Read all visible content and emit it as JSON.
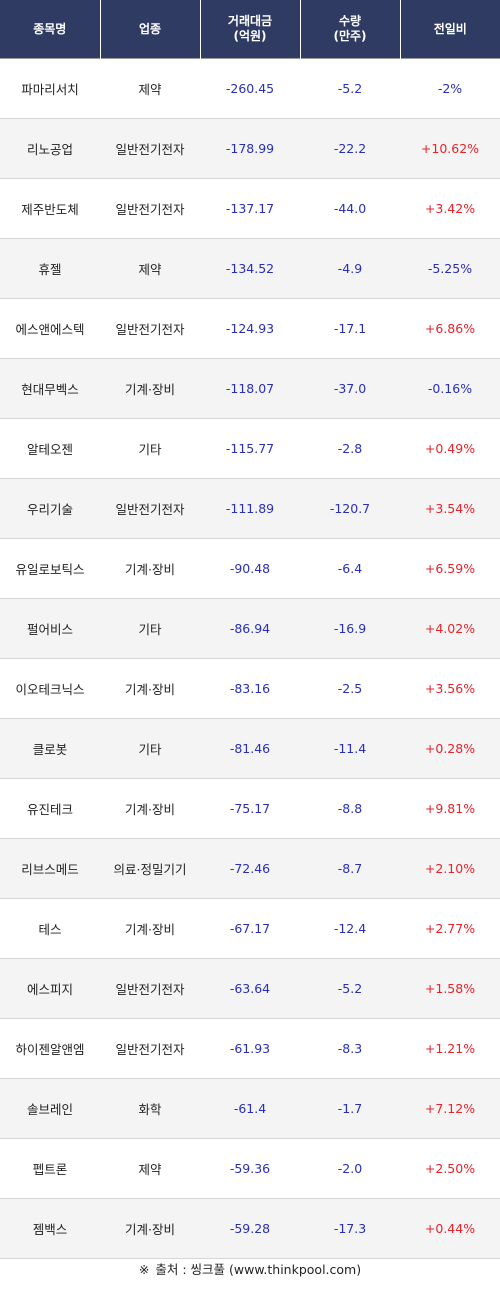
{
  "headers": {
    "name": "종목명",
    "sector": "업종",
    "amount_line1": "거래대금",
    "amount_line2": "(억원)",
    "volume_line1": "수량",
    "volume_line2": "(만주)",
    "change": "전일비"
  },
  "rows": [
    {
      "name": "파마리서치",
      "sector": "제약",
      "amount": "-260.45",
      "volume": "-5.2",
      "change": "-2%",
      "direction": "down"
    },
    {
      "name": "리노공업",
      "sector": "일반전기전자",
      "amount": "-178.99",
      "volume": "-22.2",
      "change": "+10.62%",
      "direction": "up"
    },
    {
      "name": "제주반도체",
      "sector": "일반전기전자",
      "amount": "-137.17",
      "volume": "-44.0",
      "change": "+3.42%",
      "direction": "up"
    },
    {
      "name": "휴젤",
      "sector": "제약",
      "amount": "-134.52",
      "volume": "-4.9",
      "change": "-5.25%",
      "direction": "down"
    },
    {
      "name": "에스앤에스텍",
      "sector": "일반전기전자",
      "amount": "-124.93",
      "volume": "-17.1",
      "change": "+6.86%",
      "direction": "up"
    },
    {
      "name": "현대무벡스",
      "sector": "기계·장비",
      "amount": "-118.07",
      "volume": "-37.0",
      "change": "-0.16%",
      "direction": "down"
    },
    {
      "name": "알테오젠",
      "sector": "기타",
      "amount": "-115.77",
      "volume": "-2.8",
      "change": "+0.49%",
      "direction": "up"
    },
    {
      "name": "우리기술",
      "sector": "일반전기전자",
      "amount": "-111.89",
      "volume": "-120.7",
      "change": "+3.54%",
      "direction": "up"
    },
    {
      "name": "유일로보틱스",
      "sector": "기계·장비",
      "amount": "-90.48",
      "volume": "-6.4",
      "change": "+6.59%",
      "direction": "up"
    },
    {
      "name": "펄어비스",
      "sector": "기타",
      "amount": "-86.94",
      "volume": "-16.9",
      "change": "+4.02%",
      "direction": "up"
    },
    {
      "name": "이오테크닉스",
      "sector": "기계·장비",
      "amount": "-83.16",
      "volume": "-2.5",
      "change": "+3.56%",
      "direction": "up"
    },
    {
      "name": "클로봇",
      "sector": "기타",
      "amount": "-81.46",
      "volume": "-11.4",
      "change": "+0.28%",
      "direction": "up"
    },
    {
      "name": "유진테크",
      "sector": "기계·장비",
      "amount": "-75.17",
      "volume": "-8.8",
      "change": "+9.81%",
      "direction": "up"
    },
    {
      "name": "리브스메드",
      "sector": "의료·정밀기기",
      "amount": "-72.46",
      "volume": "-8.7",
      "change": "+2.10%",
      "direction": "up"
    },
    {
      "name": "테스",
      "sector": "기계·장비",
      "amount": "-67.17",
      "volume": "-12.4",
      "change": "+2.77%",
      "direction": "up"
    },
    {
      "name": "에스피지",
      "sector": "일반전기전자",
      "amount": "-63.64",
      "volume": "-5.2",
      "change": "+1.58%",
      "direction": "up"
    },
    {
      "name": "하이젠알앤엠",
      "sector": "일반전기전자",
      "amount": "-61.93",
      "volume": "-8.3",
      "change": "+1.21%",
      "direction": "up"
    },
    {
      "name": "솔브레인",
      "sector": "화학",
      "amount": "-61.4",
      "volume": "-1.7",
      "change": "+7.12%",
      "direction": "up"
    },
    {
      "name": "펩트론",
      "sector": "제약",
      "amount": "-59.36",
      "volume": "-2.0",
      "change": "+2.50%",
      "direction": "up"
    },
    {
      "name": "젬백스",
      "sector": "기계·장비",
      "amount": "-59.28",
      "volume": "-17.3",
      "change": "+0.44%",
      "direction": "up"
    }
  ],
  "source": {
    "mark": "※",
    "text": "출처 : 씽크풀 (www.thinkpool.com)"
  },
  "colors": {
    "header_bg": "#2f3b63",
    "up": "#e8232a",
    "down": "#2a2fb8",
    "stripe": "#f4f4f4"
  }
}
